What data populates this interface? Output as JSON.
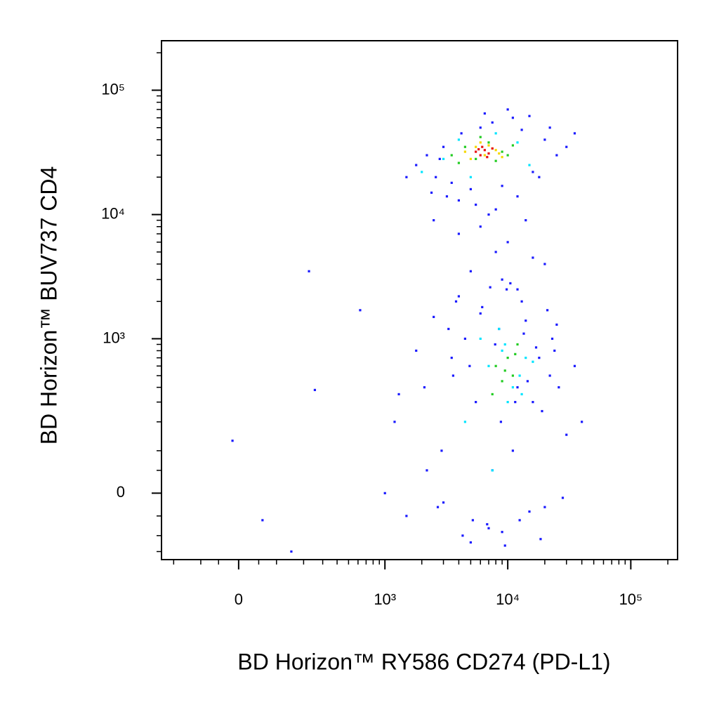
{
  "chart_data": {
    "type": "scatter",
    "xlabel": "BD Horizon™ RY586 CD274 (PD-L1)",
    "ylabel": "BD Horizon™ BUV737 CD4",
    "xscale": "biexponential",
    "yscale": "biexponential",
    "xlim": [
      -260,
      240000
    ],
    "ylim": [
      -180,
      250000
    ],
    "xticks": [
      0,
      {
        "value": 1000,
        "label": "10³"
      },
      {
        "value": 10000,
        "label": "10⁴"
      },
      {
        "value": 100000,
        "label": "10⁵"
      }
    ],
    "yticks": [
      0,
      {
        "value": 1000,
        "label": "10³"
      },
      {
        "value": 10000,
        "label": "10⁴"
      },
      {
        "value": 100000,
        "label": "10⁵"
      }
    ],
    "xminorticks": [
      -200,
      -100,
      -50,
      50,
      100,
      200,
      300,
      400,
      500,
      600,
      700,
      800,
      900,
      2000,
      3000,
      4000,
      5000,
      6000,
      7000,
      8000,
      9000,
      20000,
      30000,
      40000,
      50000,
      60000,
      70000,
      80000,
      90000,
      200000
    ],
    "yminorticks": [
      -150,
      -100,
      -50,
      50,
      100,
      200,
      300,
      400,
      500,
      600,
      700,
      800,
      900,
      2000,
      3000,
      4000,
      5000,
      6000,
      7000,
      8000,
      9000,
      20000,
      30000,
      40000,
      50000,
      60000,
      70000,
      80000,
      90000,
      200000
    ],
    "series": [
      {
        "color": "#1a1aff",
        "x": [
          1800,
          2200,
          2600,
          3000,
          3500,
          4200,
          5000,
          6000,
          7500,
          9000,
          11000,
          13000,
          16000,
          20000,
          25000,
          30000,
          2400,
          3200,
          4000,
          5500,
          8000,
          12000,
          18000,
          2800,
          6500,
          10000,
          15000,
          22000,
          35000,
          1500,
          2500,
          4000,
          6000,
          8000,
          10000,
          14000,
          20000,
          5000,
          9000,
          12000,
          16000,
          7000,
          1200,
          1500,
          1800,
          2100,
          2500,
          2900,
          3300,
          3800,
          4300,
          4900,
          5500,
          6200,
          7000,
          7900,
          8800,
          9800,
          11000,
          12500,
          14000,
          16000,
          18000,
          20000,
          23000,
          26000,
          30000,
          35000,
          40000,
          2200,
          3000,
          4000,
          5000,
          6000,
          7500,
          9000,
          10500,
          12000,
          13500,
          15000,
          17000,
          19000,
          22000,
          25000,
          28000,
          3500,
          4500,
          6800,
          8500,
          11500,
          14500,
          18500,
          24000,
          1000,
          1300,
          2700,
          3600,
          5200,
          7200,
          9500,
          13000,
          21000,
          225,
          -15,
          60,
          150,
          625,
          255
        ],
        "y": [
          25000,
          30000,
          20000,
          35000,
          18000,
          45000,
          16000,
          50000,
          55000,
          17000,
          60000,
          48000,
          22000,
          40000,
          30000,
          35000,
          15000,
          14000,
          13000,
          12000,
          11000,
          14000,
          20000,
          28000,
          65000,
          70000,
          62000,
          50000,
          45000,
          20000,
          9000,
          7000,
          8000,
          5000,
          6000,
          9000,
          4000,
          3500,
          3000,
          2500,
          4500,
          10000,
          200,
          -50,
          800,
          400,
          1500,
          100,
          1200,
          2000,
          -100,
          600,
          300,
          1800,
          -80,
          900,
          200,
          2500,
          100,
          -60,
          1400,
          300,
          700,
          -30,
          1000,
          400,
          150,
          600,
          200,
          50,
          -20,
          2200,
          -120,
          1600,
          50,
          -90,
          2800,
          400,
          1100,
          -40,
          850,
          250,
          500,
          1300,
          -10,
          700,
          1000,
          -70,
          1200,
          300,
          450,
          -110,
          800,
          0,
          350,
          -30,
          500,
          -60,
          2600,
          -130,
          2000,
          1700,
          3500,
          130,
          -60,
          -150,
          1700,
          380
        ]
      },
      {
        "color": "#00e5ff",
        "x": [
          2000,
          3000,
          4000,
          8000,
          12000,
          15000,
          5000,
          7000,
          9000,
          11000,
          6000,
          10000,
          14000,
          8500,
          12500,
          4500,
          7500,
          9500,
          13000,
          16000
        ],
        "y": [
          22000,
          28000,
          40000,
          45000,
          38000,
          25000,
          20000,
          600,
          800,
          400,
          1000,
          300,
          700,
          1200,
          500,
          200,
          50,
          900,
          350,
          650
        ]
      },
      {
        "color": "#22cc22",
        "x": [
          3500,
          4500,
          5500,
          7000,
          9000,
          11000,
          4000,
          6000,
          8000,
          10000,
          8000,
          9000,
          10000,
          11000,
          12000,
          7500,
          9500,
          11500
        ],
        "y": [
          30000,
          35000,
          28000,
          38000,
          32000,
          36000,
          26000,
          42000,
          27000,
          30000,
          600,
          450,
          700,
          500,
          900,
          350,
          550,
          750
        ]
      },
      {
        "color": "#f5d800",
        "x": [
          4500,
          5500,
          6500,
          7500,
          8500,
          5000,
          7000,
          9000,
          6000,
          8000
        ],
        "y": [
          32000,
          35000,
          30000,
          34000,
          31000,
          28000,
          36000,
          29000,
          38000,
          33000
        ]
      },
      {
        "color": "#e81010",
        "x": [
          5500,
          6500,
          7000,
          6000,
          7500,
          6200,
          6800,
          5800
        ],
        "y": [
          32000,
          33000,
          31000,
          30000,
          34000,
          35000,
          29000,
          33500
        ]
      }
    ]
  }
}
